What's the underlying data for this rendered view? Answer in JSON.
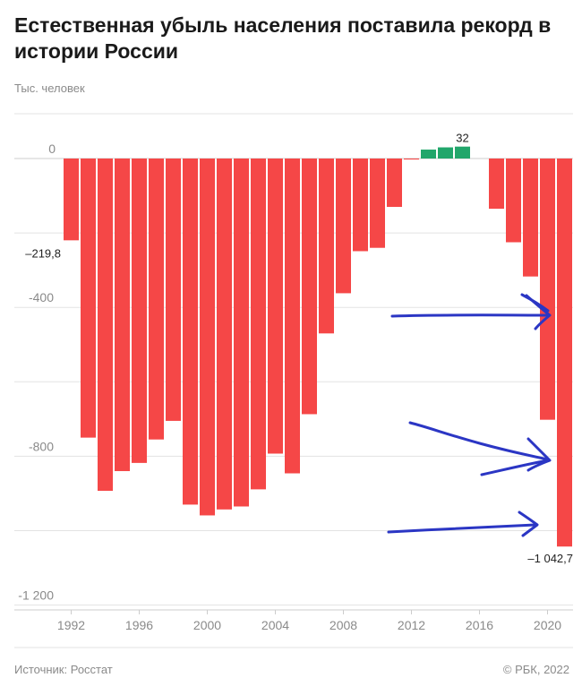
{
  "header": {
    "title": "Естественная убыль населения поставила рекорд в истории России",
    "unit": "Тыс. человек"
  },
  "footer": {
    "source": "Источник: Росстат",
    "copyright": "© РБК, 2022"
  },
  "colors": {
    "negative": "#f54747",
    "positive": "#21a66b",
    "grid": "#e3e3e3",
    "axis": "#cccccc",
    "annotation": "#2b36c4"
  },
  "chart_data": {
    "type": "bar",
    "title": "Естественная убыль населения поставила рекорд в истории России",
    "ylabel": "Тыс. человек",
    "xlabel": "",
    "ylim": [
      -1200,
      50
    ],
    "grid": true,
    "y_ticks": [
      0,
      -200,
      -400,
      -600,
      -800,
      -1000,
      -1200
    ],
    "y_tick_labels": [
      "0",
      "",
      "-400",
      "",
      "-800",
      "",
      "-1 200"
    ],
    "x_tick_labels": [
      "1992",
      "1996",
      "2000",
      "2004",
      "2008",
      "2012",
      "2016",
      "2020"
    ],
    "categories": [
      "1992",
      "1993",
      "1994",
      "1995",
      "1996",
      "1997",
      "1998",
      "1999",
      "2000",
      "2001",
      "2002",
      "2003",
      "2004",
      "2005",
      "2006",
      "2007",
      "2008",
      "2009",
      "2010",
      "2011",
      "2012",
      "2013",
      "2014",
      "2015",
      "2016",
      "2017",
      "2018",
      "2019",
      "2020",
      "2021"
    ],
    "values": [
      -219.8,
      -750,
      -893,
      -840,
      -818,
      -755,
      -705,
      -930,
      -959,
      -943,
      -935,
      -889,
      -793,
      -846,
      -687,
      -470,
      -362,
      -249,
      -240,
      -130,
      -2.6,
      24,
      30,
      32,
      0,
      -135,
      -225,
      -317,
      -702,
      -1042.7
    ],
    "data_labels": [
      {
        "category": "1992",
        "text": "–219,8"
      },
      {
        "category": "2015",
        "text": "32"
      },
      {
        "category": "2021",
        "text": "–1 042,7"
      }
    ]
  }
}
